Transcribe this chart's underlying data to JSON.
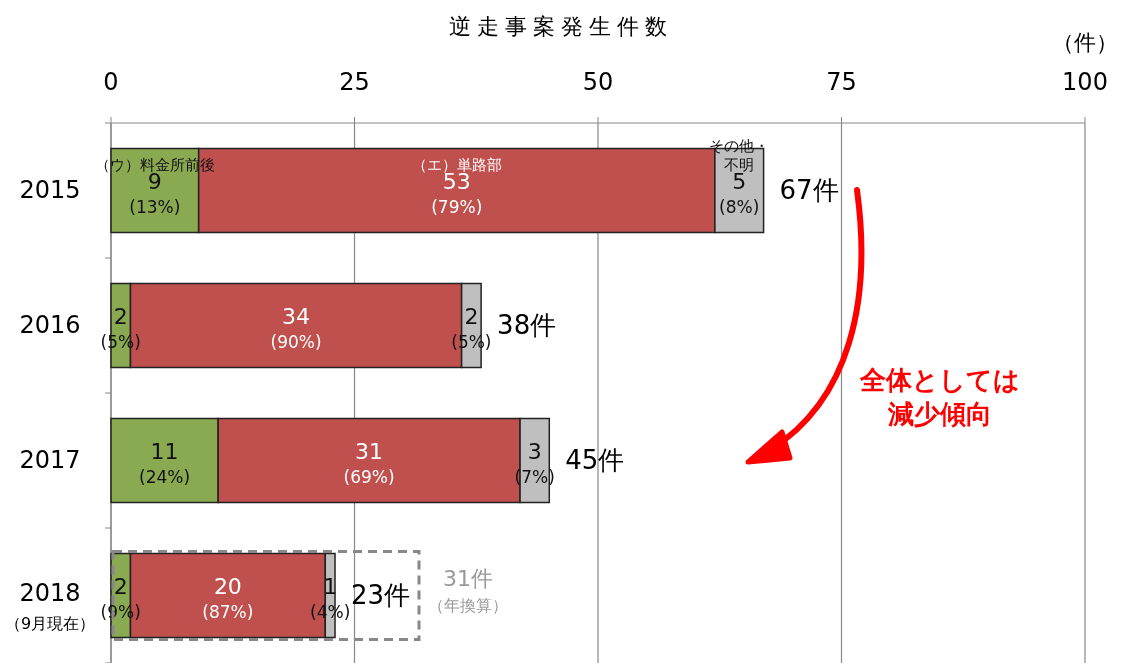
{
  "chart_data": {
    "type": "bar",
    "orientation": "horizontal",
    "stacked": true,
    "title": "逆走事案発生件数",
    "xlabel": "（件）",
    "categories": [
      "2015",
      "2016",
      "2017",
      "2018\n（9月現在）"
    ],
    "series": [
      {
        "name": "（ウ）料金所前後",
        "color": "#8aaa52",
        "values": [
          9,
          2,
          11,
          2
        ],
        "value_labels": [
          "9\n(13%)",
          "2\n(5%)",
          "11\n(24%)",
          "2\n(9%)"
        ]
      },
      {
        "name": "（エ）単路部",
        "color": "#c0504d",
        "values": [
          53,
          34,
          31,
          20
        ],
        "value_labels": [
          "53\n(79%)",
          "34\n(90%)",
          "31\n(69%)",
          "20\n(87%)"
        ]
      },
      {
        "name": "その他・不明",
        "color": "#bfbfbf",
        "values": [
          5,
          2,
          3,
          1
        ],
        "value_labels": [
          "5\n(8%)",
          "2\n(5%)",
          "3\n(7%)",
          "1\n(4%)"
        ]
      }
    ],
    "totals": [
      "67件",
      "38件",
      "45件",
      "23件"
    ],
    "xlim": [
      0,
      100
    ],
    "xticks": [
      0,
      25,
      50,
      75,
      100
    ],
    "grid": "x",
    "legend": false,
    "annotations": [
      "全体としては減少傾向",
      "31件（年換算）"
    ]
  }
}
